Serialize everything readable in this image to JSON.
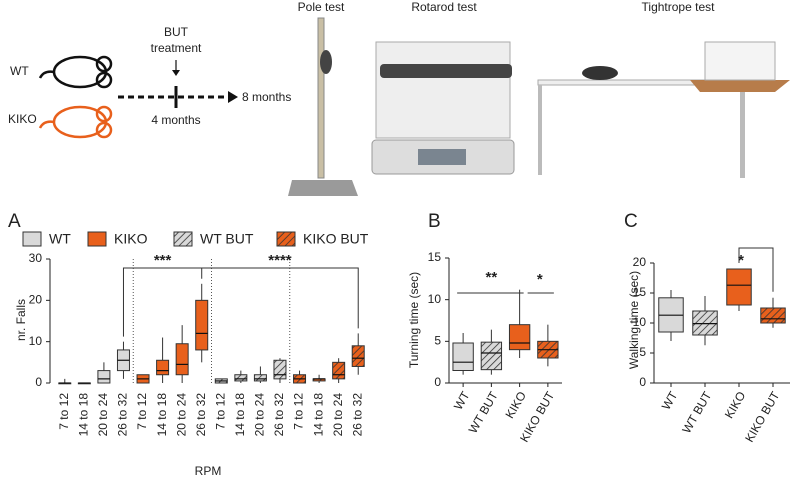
{
  "diagram": {
    "genotypes": [
      "WT",
      "KIKO"
    ],
    "treatment": [
      "BUT",
      "treatment"
    ],
    "end_age": "8 months",
    "start_age": "4 months",
    "tests": [
      "Pole test",
      "Rotarod test",
      "Tightrope test"
    ]
  },
  "panels": [
    "A",
    "B",
    "C"
  ],
  "chart_data": [
    {
      "type": "box",
      "ylabel": "nr. Falls",
      "xlabel": "RPM",
      "ylim": [
        0,
        30
      ],
      "yticks": [
        0,
        10,
        20,
        30
      ],
      "categories": [
        "7 to 12",
        "14 to 18",
        "20 to 24",
        "26 to 32"
      ],
      "series": [
        {
          "name": "WT",
          "color": "#d9d9d9",
          "hatched": false,
          "values": [
            {
              "min": 0,
              "q1": 0,
              "median": 0,
              "q3": 0,
              "max": 1
            },
            {
              "min": 0,
              "q1": 0,
              "median": 0,
              "q3": 0,
              "max": 0
            },
            {
              "min": 0,
              "q1": 0,
              "median": 1,
              "q3": 3,
              "max": 5
            },
            {
              "min": 1,
              "q1": 3,
              "median": 5.5,
              "q3": 8,
              "max": 10
            }
          ]
        },
        {
          "name": "KIKO",
          "color": "#e8601c",
          "hatched": false,
          "values": [
            {
              "min": 0,
              "q1": 0,
              "median": 1,
              "q3": 2,
              "max": 2
            },
            {
              "min": 0,
              "q1": 2,
              "median": 3,
              "q3": 5.5,
              "max": 11
            },
            {
              "min": 0,
              "q1": 2,
              "median": 4.5,
              "q3": 9.5,
              "max": 14
            },
            {
              "min": 5,
              "q1": 8,
              "median": 12,
              "q3": 20,
              "max": 24
            }
          ]
        },
        {
          "name": "WT BUT",
          "color": "#d9d9d9",
          "hatched": true,
          "values": [
            {
              "min": 0,
              "q1": 0,
              "median": 0.5,
              "q3": 1,
              "max": 1
            },
            {
              "min": 0,
              "q1": 0.5,
              "median": 1,
              "q3": 2,
              "max": 3
            },
            {
              "min": 0,
              "q1": 0.5,
              "median": 1,
              "q3": 2,
              "max": 4
            },
            {
              "min": 0,
              "q1": 1,
              "median": 2,
              "q3": 5.5,
              "max": 6
            }
          ]
        },
        {
          "name": "KIKO BUT",
          "color": "#e8601c",
          "hatched": true,
          "values": [
            {
              "min": 0,
              "q1": 0,
              "median": 1,
              "q3": 2,
              "max": 3
            },
            {
              "min": 0,
              "q1": 0.5,
              "median": 1,
              "q3": 1,
              "max": 2
            },
            {
              "min": 0,
              "q1": 1,
              "median": 2,
              "q3": 5,
              "max": 6
            },
            {
              "min": 2,
              "q1": 4,
              "median": 6,
              "q3": 9,
              "max": 12
            }
          ]
        }
      ],
      "annotations": [
        "***",
        "****"
      ]
    },
    {
      "type": "box",
      "ylabel": "Turning time (sec)",
      "ylim": [
        0,
        15
      ],
      "yticks": [
        0,
        5,
        10,
        15
      ],
      "categories": [
        "WT",
        "WT BUT",
        "KIKO",
        "KIKO BUT"
      ],
      "colors": [
        "#d9d9d9",
        "#d9d9d9",
        "#e8601c",
        "#e8601c"
      ],
      "hatched": [
        false,
        true,
        false,
        true
      ],
      "values": [
        {
          "min": 1,
          "q1": 1.5,
          "median": 2.5,
          "q3": 4.8,
          "max": 6
        },
        {
          "min": 1,
          "q1": 1.6,
          "median": 3.6,
          "q3": 4.9,
          "max": 6.4
        },
        {
          "min": 3,
          "q1": 4,
          "median": 4.8,
          "q3": 7,
          "max": 11.2
        },
        {
          "min": 2,
          "q1": 3,
          "median": 4,
          "q3": 5,
          "max": 7
        }
      ],
      "annotations": [
        "**",
        "*"
      ]
    },
    {
      "type": "box",
      "ylabel": "Walking time (sec)",
      "ylim": [
        0,
        20
      ],
      "yticks": [
        0,
        5,
        10,
        15,
        20
      ],
      "categories": [
        "WT",
        "WT BUT",
        "KIKO",
        "KIKO BUT"
      ],
      "colors": [
        "#d9d9d9",
        "#d9d9d9",
        "#e8601c",
        "#e8601c"
      ],
      "hatched": [
        false,
        true,
        false,
        true
      ],
      "values": [
        {
          "min": 7,
          "q1": 8.5,
          "median": 11.3,
          "q3": 14.2,
          "max": 15.5
        },
        {
          "min": 6.3,
          "q1": 8,
          "median": 9.9,
          "q3": 12,
          "max": 14.5
        },
        {
          "min": 12,
          "q1": 13,
          "median": 16.3,
          "q3": 19,
          "max": 19
        },
        {
          "min": 9.2,
          "q1": 10,
          "median": 10.7,
          "q3": 12.5,
          "max": 14.2
        }
      ],
      "annotations": [
        "*"
      ]
    }
  ]
}
